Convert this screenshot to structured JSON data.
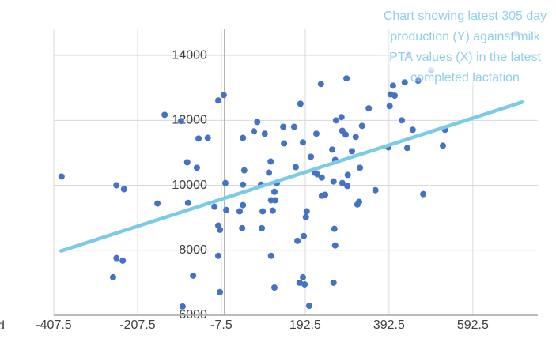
{
  "chart_data": {
    "type": "scatter",
    "annotation": "Chart showing latest 305 day production (Y) against milk PTA values (X) in the latest completed lactation",
    "side_text": "d",
    "xlim": [
      -407.5,
      747.5
    ],
    "ylim": [
      6000,
      15000
    ],
    "xticks": [
      -407.5,
      -207.5,
      -7.5,
      192.5,
      392.5,
      592.5
    ],
    "yticks": [
      6000,
      8000,
      10000,
      12000,
      14000
    ],
    "grid": true,
    "series": [
      {
        "color": "#4472c4",
        "x": [
          -389,
          -258,
          -240,
          -258,
          -243,
          -266,
          -160,
          -143,
          -104,
          -89,
          -87,
          -66,
          -62,
          -40,
          -75,
          -100,
          -24,
          -15,
          -2,
          2,
          -15,
          -11,
          -15,
          -11,
          4,
          44,
          47,
          44,
          44,
          42,
          36,
          70,
          78,
          96,
          87,
          91,
          89,
          106,
          110,
          111,
          119,
          121,
          125,
          115,
          111,
          119,
          140,
          142,
          166,
          170,
          181,
          187,
          174,
          189,
          194,
          196,
          187,
          191,
          179,
          202,
          206,
          215,
          219,
          221,
          230,
          232,
          232,
          240,
          257,
          260,
          264,
          260,
          264,
          262,
          266,
          279,
          281,
          281,
          289,
          294,
          293,
          291,
          304,
          313,
          317,
          321,
          323,
          328,
          344,
          360,
          391,
          396,
          394,
          402,
          406,
          423,
          430,
          436,
          440,
          449,
          462,
          474,
          493,
          521,
          526,
          696
        ],
        "values": [
          10270,
          10000,
          9880,
          7760,
          7680,
          7170,
          9440,
          12170,
          11980,
          10710,
          9460,
          10540,
          11440,
          11460,
          7220,
          6270,
          9340,
          12610,
          12780,
          10070,
          8760,
          8630,
          7830,
          6710,
          9240,
          10020,
          10460,
          11460,
          9390,
          8680,
          9200,
          11660,
          11950,
          11590,
          10020,
          9200,
          8680,
          10390,
          10730,
          9540,
          9800,
          9540,
          10070,
          9220,
          7830,
          6850,
          11800,
          11290,
          11800,
          10560,
          12510,
          11320,
          8290,
          8440,
          9020,
          9200,
          7170,
          6950,
          7000,
          6290,
          10880,
          10390,
          11590,
          10340,
          13120,
          10240,
          9680,
          9710,
          11100,
          10120,
          10780,
          7000,
          8150,
          8660,
          12000,
          12100,
          10070,
          11680,
          11560,
          10320,
          9980,
          13290,
          11050,
          11490,
          9410,
          9490,
          10540,
          11830,
          12370,
          9850,
          11170,
          12800,
          12440,
          13070,
          12760,
          12000,
          13170,
          11150,
          14020,
          11710,
          13220,
          9730,
          13540,
          11220,
          11710,
          14660
        ]
      }
    ],
    "trendline": {
      "color": "#7ccbe6",
      "x": [
        -390,
        710
      ],
      "values": [
        7980,
        12560
      ]
    }
  }
}
